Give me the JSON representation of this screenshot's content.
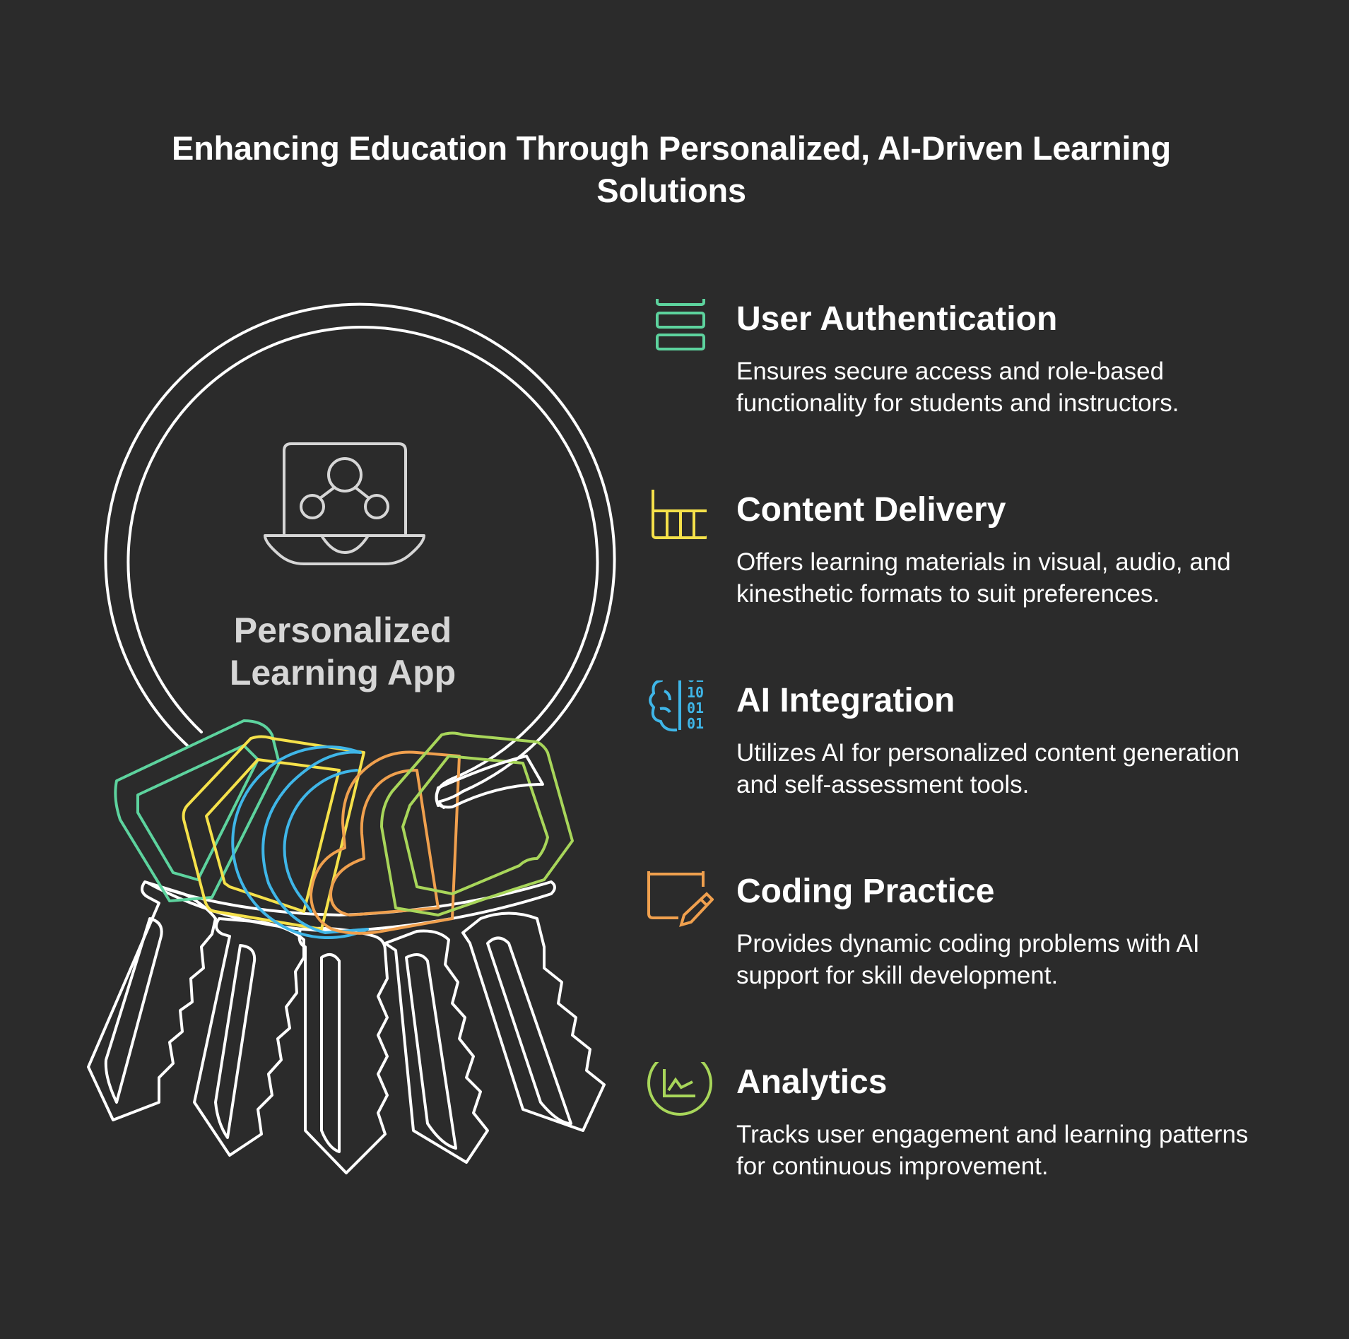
{
  "title": "Enhancing Education Through Personalized, AI-Driven Learning Solutions",
  "center": {
    "label": "Personalized Learning App",
    "icon": "laptop-network-icon"
  },
  "colors": {
    "background": "#2b2b2b",
    "outline": "#ffffff",
    "green": "#5dd39e",
    "yellow": "#f5e14a",
    "blue": "#3fb6e8",
    "orange": "#f0a04e",
    "lime": "#a8d65a"
  },
  "features": [
    {
      "name": "User Authentication",
      "description": "Ensures secure access and role-based functionality for students and instructors.",
      "icon": "stacked-layers-icon",
      "color": "#5dd39e"
    },
    {
      "name": "Content Delivery",
      "description": "Offers learning materials in visual, audio, and kinesthetic formats to suit preferences.",
      "icon": "grid-panel-icon",
      "color": "#f5e14a"
    },
    {
      "name": "AI Integration",
      "description": "Utilizes AI for personalized content generation and self-assessment tools.",
      "icon": "brain-binary-icon",
      "color": "#3fb6e8"
    },
    {
      "name": "Coding Practice",
      "description": "Provides dynamic coding problems with AI support for skill development.",
      "icon": "browser-pencil-icon",
      "color": "#f0a04e"
    },
    {
      "name": "Analytics",
      "description": "Tracks user engagement and learning patterns for continuous improvement.",
      "icon": "chart-circle-icon",
      "color": "#a8d65a"
    }
  ]
}
